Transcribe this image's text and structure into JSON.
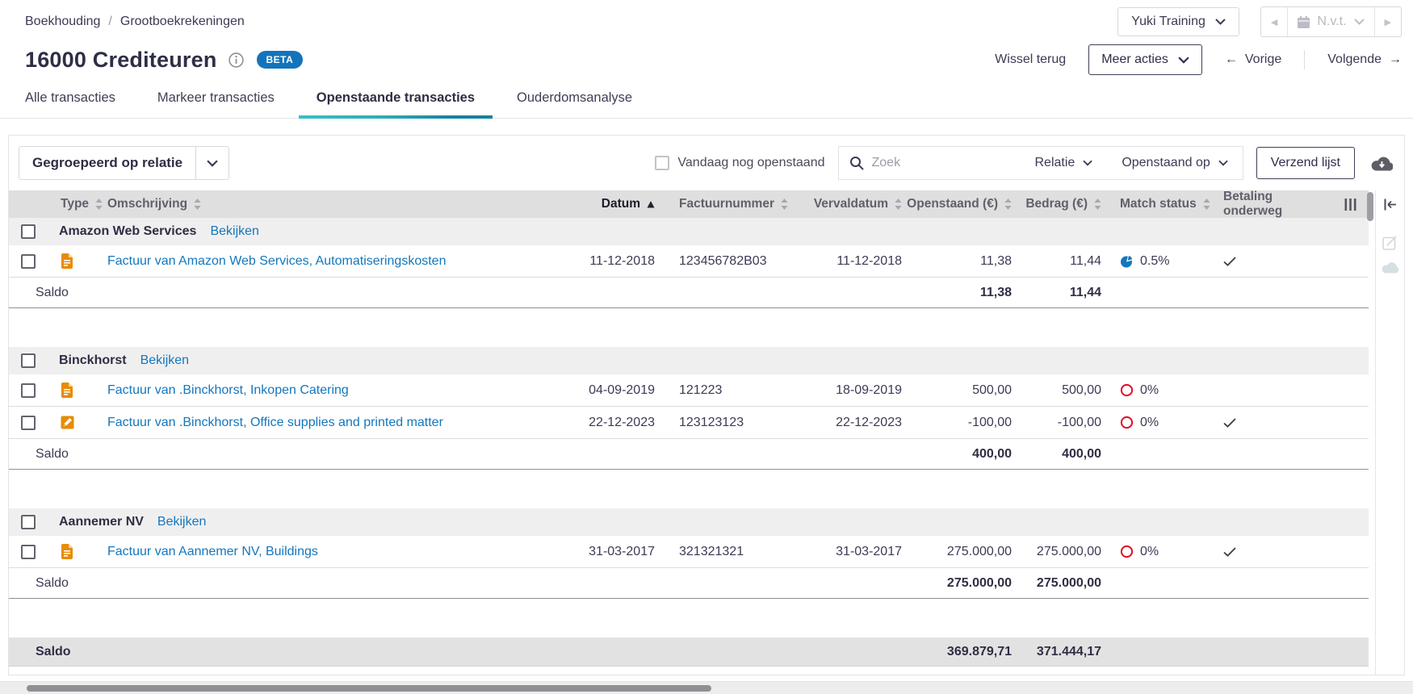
{
  "breadcrumb": {
    "items": [
      "Boekhouding",
      "Grootboekrekeningen"
    ],
    "separator": "/"
  },
  "header": {
    "title": "16000 Crediteuren",
    "beta": "BETA",
    "administration_dropdown": "Yuki Training",
    "period_dropdown": "N.v.t.",
    "switch_back": "Wissel terug",
    "more_actions": "Meer acties",
    "previous": "Vorige",
    "next": "Volgende",
    "previous_arrow": "←",
    "next_arrow": "→"
  },
  "tabs": [
    {
      "label": "Alle transacties",
      "active": false
    },
    {
      "label": "Markeer transacties",
      "active": false
    },
    {
      "label": "Openstaande transacties",
      "active": true
    },
    {
      "label": "Ouderdomsanalyse",
      "active": false
    }
  ],
  "filters": {
    "group_dropdown": "Gegroepeerd op relatie",
    "today_checkbox": "Vandaag nog openstaand",
    "search_placeholder": "Zoek",
    "relation_dropdown": "Relatie",
    "outstanding_on_dropdown": "Openstaand op",
    "send_list": "Verzend lijst"
  },
  "table": {
    "columns": [
      {
        "label": "Type",
        "sort": "both"
      },
      {
        "label": "Omschrijving",
        "sort": "both"
      },
      {
        "label": "Datum",
        "sort": "asc"
      },
      {
        "label": "Factuurnummer",
        "sort": "both"
      },
      {
        "label": "Vervaldatum",
        "sort": "both"
      },
      {
        "label": "Openstaand (€)",
        "sort": "both"
      },
      {
        "label": "Bedrag (€)",
        "sort": "both"
      },
      {
        "label": "Match status",
        "sort": "both"
      },
      {
        "label": "Betaling onderweg",
        "sort": "none"
      }
    ],
    "groups": [
      {
        "name": "Amazon Web Services",
        "action": "Bekijken",
        "rows": [
          {
            "type": "invoice",
            "description": "Factuur van Amazon Web Services, Automatiseringskosten",
            "date": "11-12-2018",
            "invoice_number": "123456782B03",
            "due_date": "11-12-2018",
            "outstanding": "11,38",
            "amount": "11,44",
            "match_status": "0.5%",
            "match_icon": "pie",
            "payment_underway": true
          }
        ],
        "saldo_label": "Saldo",
        "saldo_outstanding": "11,38",
        "saldo_amount": "11,44"
      },
      {
        "name": "Binckhorst",
        "action": "Bekijken",
        "rows": [
          {
            "type": "invoice",
            "description": "Factuur van .Binckhorst, Inkopen Catering",
            "date": "04-09-2019",
            "invoice_number": "121223",
            "due_date": "18-09-2019",
            "outstanding": "500,00",
            "amount": "500,00",
            "match_status": "0%",
            "match_icon": "circle",
            "payment_underway": false
          },
          {
            "type": "credit",
            "description": "Factuur van .Binckhorst, Office supplies and printed matter",
            "date": "22-12-2023",
            "invoice_number": "123123123",
            "due_date": "22-12-2023",
            "outstanding": "-100,00",
            "amount": "-100,00",
            "match_status": "0%",
            "match_icon": "circle",
            "payment_underway": true
          }
        ],
        "saldo_label": "Saldo",
        "saldo_outstanding": "400,00",
        "saldo_amount": "400,00"
      },
      {
        "name": "Aannemer NV",
        "action": "Bekijken",
        "rows": [
          {
            "type": "invoice",
            "description": "Factuur van Aannemer NV, Buildings",
            "date": "31-03-2017",
            "invoice_number": "321321321",
            "due_date": "31-03-2017",
            "outstanding": "275.000,00",
            "amount": "275.000,00",
            "match_status": "0%",
            "match_icon": "circle",
            "payment_underway": true
          }
        ],
        "saldo_label": "Saldo",
        "saldo_outstanding": "275.000,00",
        "saldo_amount": "275.000,00"
      }
    ],
    "total": {
      "label": "Saldo",
      "outstanding": "369.879,71",
      "amount": "371.444,17"
    }
  },
  "colors": {
    "accent_blue": "#1377bd",
    "beta_badge": "#1374bc",
    "tab_teal": "#2fb9c0",
    "tab_teal_dark": "#17809e",
    "type_icon_orange": "#e78b08",
    "match_red": "#e30b25",
    "match_blue": "#1377bd"
  }
}
